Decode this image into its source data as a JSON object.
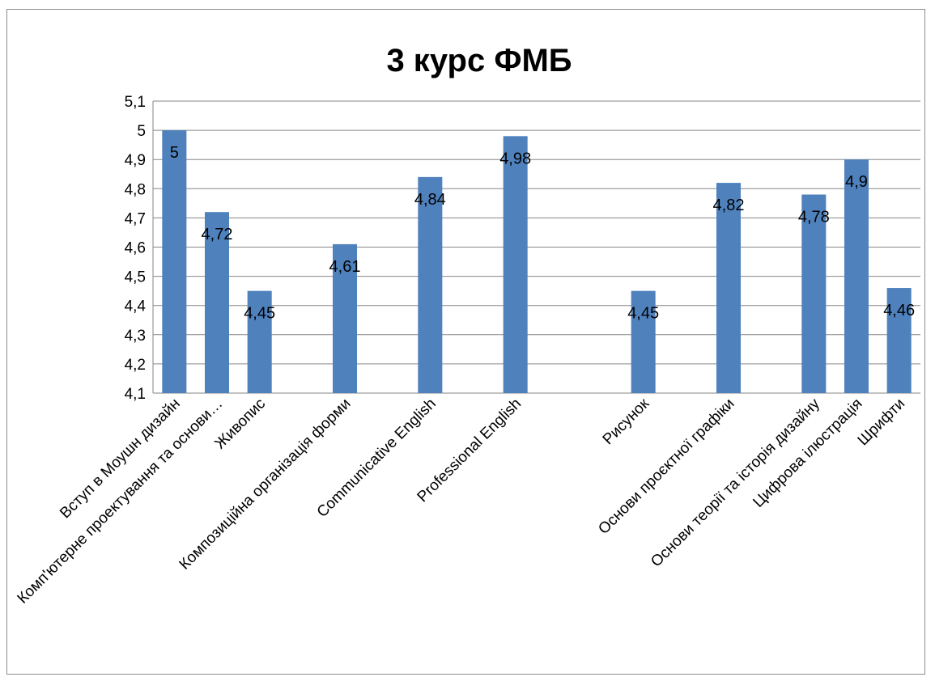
{
  "chart_data": {
    "type": "bar",
    "title": "3 курс ФМБ",
    "categories": [
      "Вступ в Моушн дизайн",
      "Комп'ютерне проектування та основи…",
      "Живопис",
      "",
      "Композиційна організація форми",
      "",
      "Communicative English",
      "",
      "Professional English",
      "",
      "",
      "Рисунок",
      "",
      "Основи проєктної графіки",
      "",
      "Основи теорії та історія дизайну",
      "Цифрова ілюстрація",
      "Шрифти"
    ],
    "values": [
      5,
      4.72,
      4.45,
      null,
      4.61,
      null,
      4.84,
      null,
      4.98,
      null,
      null,
      4.45,
      null,
      4.82,
      null,
      4.78,
      4.9,
      4.46
    ],
    "data_labels": [
      "5",
      "4,72",
      "4,45",
      "",
      "4,61",
      "",
      "4,84",
      "",
      "4,98",
      "",
      "",
      "4,45",
      "",
      "4,82",
      "",
      "4,78",
      "4,9",
      "4,46"
    ],
    "yticks": [
      "4,1",
      "4,2",
      "4,3",
      "4,4",
      "4,5",
      "4,6",
      "4,7",
      "4,8",
      "4,9",
      "5",
      "5,1"
    ],
    "ylim": [
      4.1,
      5.1
    ],
    "grid": true,
    "legend": "none",
    "bar_color": "#4f81bd",
    "grid_color": "#868686"
  }
}
